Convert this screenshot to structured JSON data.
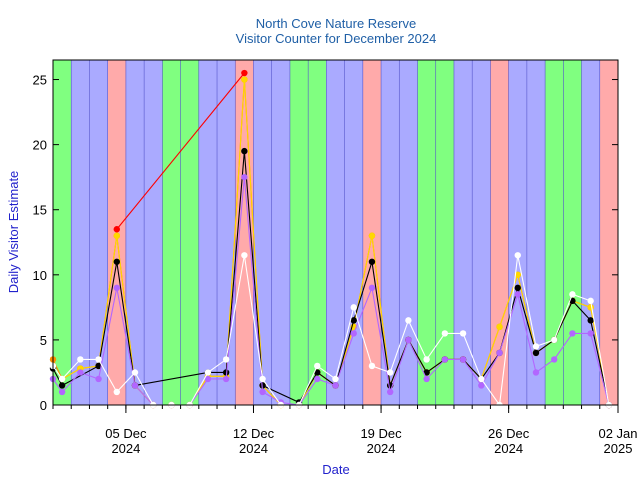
{
  "chart_data": {
    "type": "line",
    "title": "North Cove Nature Reserve",
    "subtitle": "Visitor Counter for December 2024",
    "xlabel": "Date",
    "ylabel": "Daily Visitor Estimate",
    "xlim": [
      1,
      32
    ],
    "ylim": [
      0,
      26.5
    ],
    "y_ticks": [
      "0",
      "5",
      "10",
      "15",
      "20",
      "25"
    ],
    "x_ticks": [
      {
        "day": 5,
        "line1": "05 Dec",
        "line2": "2024"
      },
      {
        "day": 12,
        "line1": "12 Dec",
        "line2": "2024"
      },
      {
        "day": 19,
        "line1": "19 Dec",
        "line2": "2024"
      },
      {
        "day": 26,
        "line1": "26 Dec",
        "line2": "2024"
      },
      {
        "day": 32,
        "line1": "02 Jan",
        "line2": "2025"
      }
    ],
    "background_bands": [
      "green",
      "blue",
      "blue",
      "red",
      "blue",
      "blue",
      "green",
      "green",
      "blue",
      "blue",
      "red",
      "blue",
      "blue",
      "green",
      "green",
      "blue",
      "blue",
      "red",
      "blue",
      "blue",
      "green",
      "green",
      "blue",
      "blue",
      "red",
      "blue",
      "blue",
      "green",
      "green",
      "blue",
      "red"
    ],
    "band_colors": {
      "green": "#80ff80",
      "blue": "#aaaaff",
      "red": "#ffaaaa"
    },
    "series": [
      {
        "name": "red",
        "color": "#ff0000",
        "x": [
          4.5,
          11.5
        ],
        "values": [
          13.5,
          25.5
        ]
      },
      {
        "name": "orange",
        "color": "#ff8c00",
        "x": [
          1,
          1.5,
          2.5,
          3.5,
          4.5,
          5.5,
          6.5,
          7.5,
          8.5,
          9.5,
          10.5,
          11.5,
          12.5,
          13.5,
          14.5,
          15.5,
          16.5,
          17.5,
          18.5,
          19.5,
          20.5,
          21.5,
          22.5,
          23.5,
          24.5,
          25.5,
          26.5,
          27.5,
          28.5,
          29.5,
          30.5,
          31.5
        ],
        "values": [
          3.5,
          2.0,
          2.8,
          3.0,
          13.0,
          1.5,
          0.0,
          0.0,
          0.0,
          2.2,
          2.2,
          25.0,
          1.5,
          0.0,
          0.0,
          2.5,
          1.5,
          6.0,
          13.0,
          1.5,
          5.0,
          2.5,
          3.5,
          3.5,
          2.0,
          6.0,
          10.0,
          4.0,
          5.0,
          8.0,
          7.5,
          0.0
        ]
      },
      {
        "name": "yellow",
        "color": "#ffd700",
        "x": [
          1.5,
          2.5,
          3.5,
          4.5,
          5.5,
          6.5,
          7.5,
          8.5,
          9.5,
          10.5,
          11.5,
          12.5,
          13.5,
          14.5,
          15.5,
          16.5,
          17.5,
          18.5,
          19.5,
          20.5,
          21.5,
          22.5,
          23.5,
          24.5,
          25.5,
          26.5,
          27.5,
          28.5,
          29.5,
          30.5,
          31.5
        ],
        "values": [
          2.0,
          2.8,
          3.0,
          13.0,
          1.5,
          0.0,
          0.0,
          0.0,
          2.2,
          2.2,
          25.0,
          1.5,
          0.0,
          0.0,
          2.5,
          1.5,
          6.0,
          13.0,
          1.5,
          5.0,
          2.5,
          3.5,
          3.5,
          2.0,
          6.0,
          10.0,
          4.0,
          5.0,
          8.0,
          7.5,
          0.0
        ]
      },
      {
        "name": "black",
        "color": "#000000",
        "x": [
          1,
          1.5,
          3.5,
          4.5,
          5.5,
          9.5,
          10.5,
          11.5,
          12.5,
          14.5,
          15.5,
          16.5,
          17.5,
          18.5,
          19.5,
          20.5,
          21.5,
          22.5,
          23.5,
          24.5,
          25.5,
          26.5,
          27.5,
          28.5,
          29.5,
          30.5,
          31.5
        ],
        "values": [
          2.8,
          1.5,
          3.0,
          11.0,
          1.5,
          2.5,
          2.5,
          19.5,
          1.5,
          0.2,
          2.5,
          1.5,
          6.5,
          11.0,
          1.5,
          5.0,
          2.5,
          3.5,
          3.5,
          2.0,
          4.0,
          9.0,
          4.0,
          5.0,
          8.0,
          6.5,
          0.0
        ]
      },
      {
        "name": "violet",
        "color": "#b266ff",
        "x": [
          1,
          1.5,
          2.5,
          3.5,
          4.5,
          5.5,
          6.5,
          7.5,
          8.5,
          9.5,
          10.5,
          11.5,
          12.5,
          13.5,
          14.5,
          15.5,
          16.5,
          17.5,
          18.5,
          19.5,
          20.5,
          21.5,
          22.5,
          23.5,
          24.5,
          25.5,
          26.5,
          27.5,
          28.5,
          29.5,
          30.5,
          31.5
        ],
        "values": [
          2.0,
          1.0,
          2.5,
          2.0,
          9.0,
          1.5,
          0.0,
          0.0,
          0.0,
          2.0,
          2.0,
          17.5,
          1.0,
          0.2,
          0.0,
          2.0,
          1.5,
          5.5,
          9.0,
          1.0,
          5.0,
          2.0,
          3.5,
          3.5,
          1.5,
          4.0,
          8.5,
          2.5,
          3.5,
          5.5,
          5.5,
          0.0
        ]
      },
      {
        "name": "white",
        "color": "#ffffff",
        "x": [
          1,
          1.5,
          2.5,
          3.5,
          4.5,
          5.5,
          6.5,
          7.5,
          8.5,
          9.5,
          10.5,
          11.5,
          12.5,
          13.5,
          14.5,
          15.5,
          16.5,
          17.5,
          18.5,
          19.5,
          20.5,
          21.5,
          22.5,
          23.5,
          24.5,
          25.5,
          26.5,
          27.5,
          28.5,
          29.5,
          30.5,
          31.5
        ],
        "values": [
          3.0,
          2.0,
          3.5,
          3.5,
          1.0,
          2.5,
          0.0,
          0.0,
          0.0,
          2.5,
          3.5,
          11.5,
          2.0,
          0.0,
          0.0,
          3.0,
          2.0,
          7.5,
          3.0,
          2.5,
          6.5,
          3.5,
          5.5,
          5.5,
          2.0,
          0.0,
          11.5,
          4.5,
          5.0,
          8.5,
          8.0,
          0.0
        ]
      }
    ]
  }
}
